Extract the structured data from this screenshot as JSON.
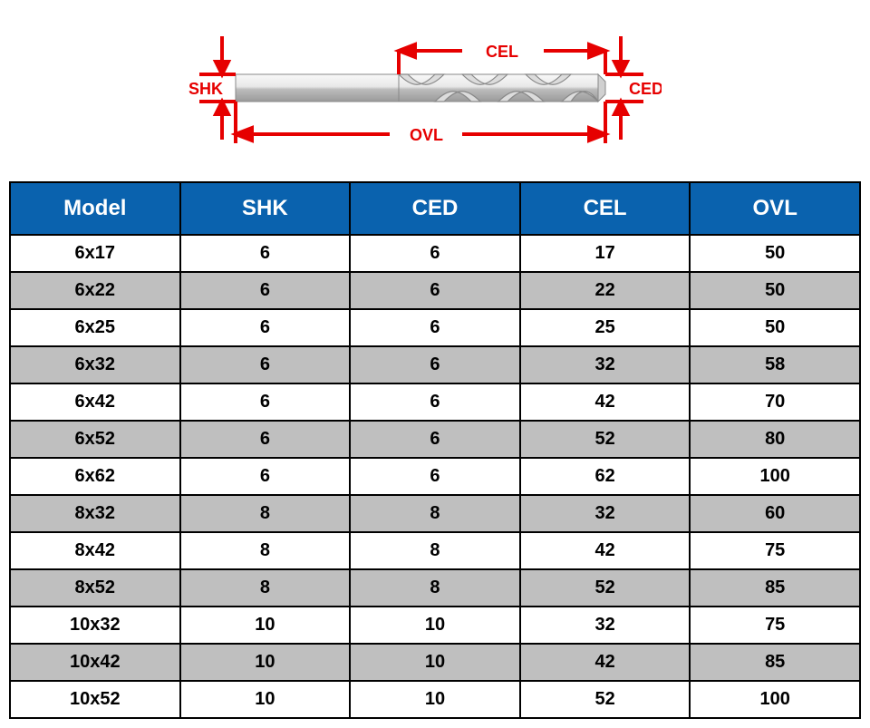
{
  "diagram": {
    "labels": {
      "shk": "SHK",
      "ced": "CED",
      "cel": "CEL",
      "ovl": "OVL"
    },
    "line_color": "#e60000",
    "label_color": "#e60000",
    "label_fontsize": 18,
    "label_fontweight": "bold",
    "bit_shank_fill": "#d9d9d9",
    "bit_flute_fill": "#c0c0c0",
    "bit_highlight": "#f5f5f5",
    "bit_stroke": "#808080"
  },
  "table": {
    "type": "table",
    "header_bg": "#0a62ae",
    "header_fg": "#ffffff",
    "row_even_bg": "#ffffff",
    "row_odd_bg": "#bfbfbf",
    "border_color": "#000000",
    "cell_fg": "#000000",
    "columns": [
      "Model",
      "SHK",
      "CED",
      "CEL",
      "OVL"
    ],
    "rows": [
      [
        "6x17",
        "6",
        "6",
        "17",
        "50"
      ],
      [
        "6x22",
        "6",
        "6",
        "22",
        "50"
      ],
      [
        "6x25",
        "6",
        "6",
        "25",
        "50"
      ],
      [
        "6x32",
        "6",
        "6",
        "32",
        "58"
      ],
      [
        "6x42",
        "6",
        "6",
        "42",
        "70"
      ],
      [
        "6x52",
        "6",
        "6",
        "52",
        "80"
      ],
      [
        "6x62",
        "6",
        "6",
        "62",
        "100"
      ],
      [
        "8x32",
        "8",
        "8",
        "32",
        "60"
      ],
      [
        "8x42",
        "8",
        "8",
        "42",
        "75"
      ],
      [
        "8x52",
        "8",
        "8",
        "52",
        "85"
      ],
      [
        "10x32",
        "10",
        "10",
        "32",
        "75"
      ],
      [
        "10x42",
        "10",
        "10",
        "42",
        "85"
      ],
      [
        "10x52",
        "10",
        "10",
        "52",
        "100"
      ]
    ]
  }
}
